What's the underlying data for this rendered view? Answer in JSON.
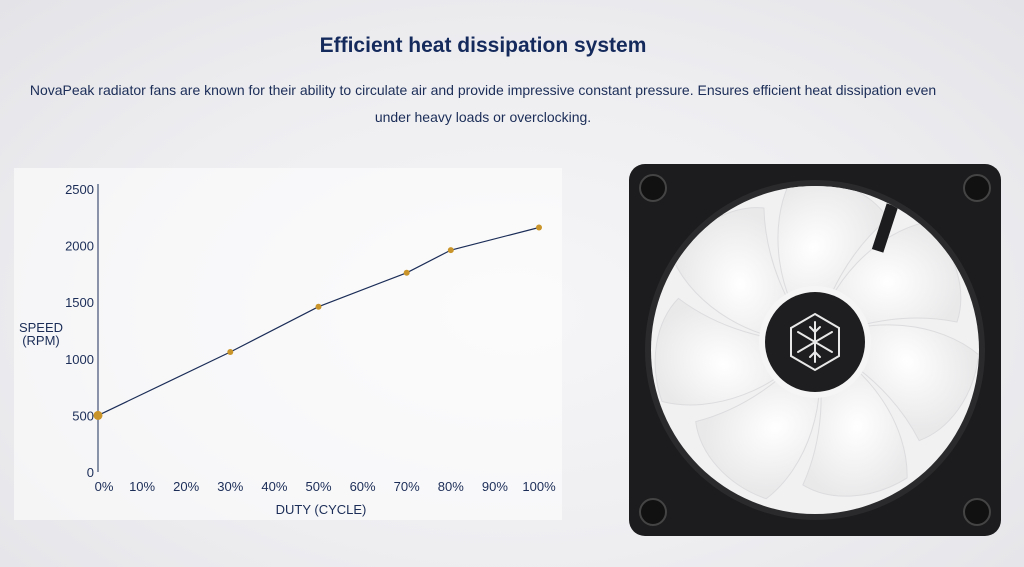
{
  "header": {
    "title": "Efficient heat dissipation system",
    "description_line1": "NovaPeak radiator fans are known for their ability to circulate air and provide impressive constant pressure. Ensures efficient heat dissipation even",
    "description_line2": "under heavy loads or overclocking."
  },
  "chart_data": {
    "type": "line",
    "title": "",
    "xlabel": "DUTY (CYCLE)",
    "ylabel_line1": "SPEED",
    "ylabel_line2": "(RPM)",
    "x_ticks": [
      "0%",
      "10%",
      "20%",
      "30%",
      "40%",
      "50%",
      "60%",
      "70%",
      "80%",
      "90%",
      "100%"
    ],
    "y_ticks": [
      "0",
      "500",
      "1000",
      "1500",
      "2000",
      "2500"
    ],
    "xlim": [
      0,
      100
    ],
    "ylim": [
      0,
      2500
    ],
    "grid": false,
    "x": [
      0,
      30,
      50,
      70,
      80,
      100
    ],
    "y": [
      500,
      1060,
      1460,
      1760,
      1960,
      2160
    ],
    "line_color": "#1b2d57",
    "marker_color": "#c9952a"
  },
  "image": {
    "fan_icon": "snowflake-icon",
    "frame_color": "#1c1c1e",
    "blade_color": "#f5f5f5"
  }
}
